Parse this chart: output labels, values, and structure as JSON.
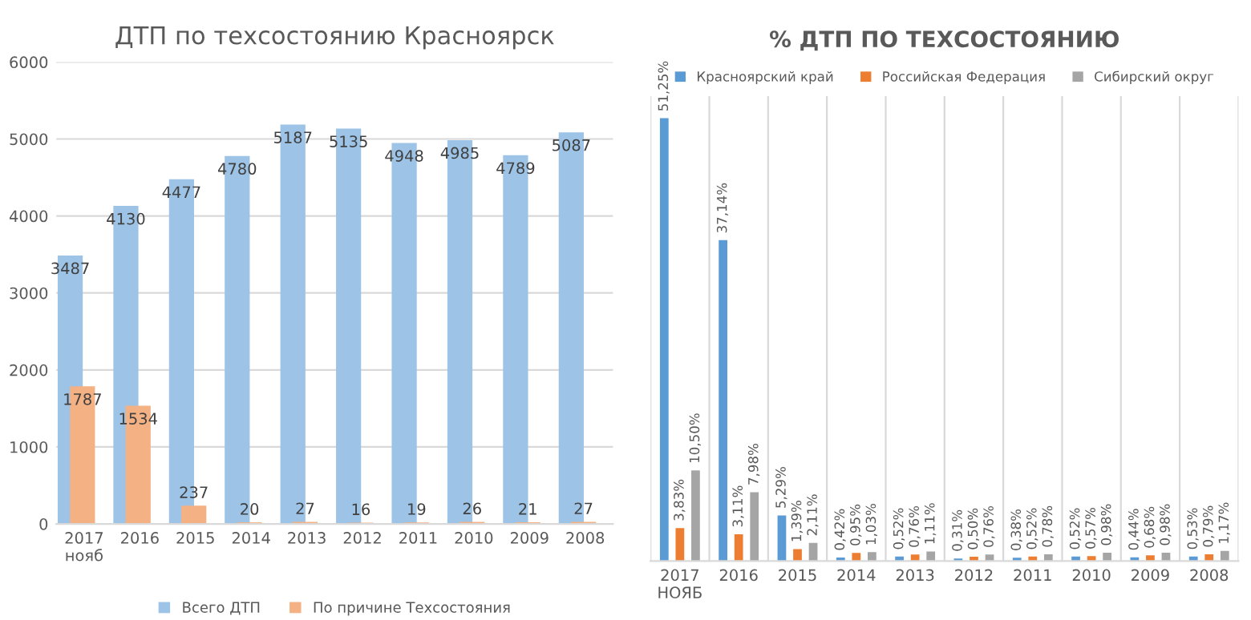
{
  "chart_data": [
    {
      "type": "bar",
      "title": "ДТП по техсостоянию Красноярск",
      "categories": [
        "2017\nнояб",
        "2016",
        "2015",
        "2014",
        "2013",
        "2012",
        "2011",
        "2010",
        "2009",
        "2008"
      ],
      "series": [
        {
          "name": "Всего ДТП",
          "color": "#9dc3e6",
          "values": [
            3487,
            4130,
            4477,
            4780,
            5187,
            5135,
            4948,
            4985,
            4789,
            5087
          ]
        },
        {
          "name": "По причине Техсостояния",
          "color": "#f4b183",
          "values": [
            1787,
            1534,
            237,
            20,
            27,
            16,
            19,
            26,
            21,
            27
          ]
        }
      ],
      "ylim": [
        0,
        6000
      ],
      "yticks": [
        0,
        1000,
        2000,
        3000,
        4000,
        5000,
        6000
      ],
      "grid": "y",
      "legend": "bottom",
      "data_labels": true
    },
    {
      "type": "bar",
      "title": "% ДТП ПО ТЕХСОСТОЯНИЮ",
      "categories": [
        "2017\nНОЯБ",
        "2016",
        "2015",
        "2014",
        "2013",
        "2012",
        "2011",
        "2010",
        "2009",
        "2008"
      ],
      "series": [
        {
          "name": "Красноярский край",
          "color": "#5b9bd5",
          "values": [
            51.25,
            37.14,
            5.29,
            0.42,
            0.52,
            0.31,
            0.38,
            0.52,
            0.44,
            0.53
          ],
          "value_labels": [
            "51,25%",
            "37,14%",
            "5,29%",
            "0,42%",
            "0,52%",
            "0,31%",
            "0,38%",
            "0,52%",
            "0,44%",
            "0,53%"
          ]
        },
        {
          "name": "Российская Федерация",
          "color": "#ed7d31",
          "values": [
            3.83,
            3.11,
            1.39,
            0.95,
            0.76,
            0.5,
            0.52,
            0.57,
            0.68,
            0.79
          ],
          "value_labels": [
            "3,83%",
            "3,11%",
            "1,39%",
            "0,95%",
            "0,76%",
            "0,50%",
            "0,52%",
            "0,57%",
            "0,68%",
            "0,79%"
          ]
        },
        {
          "name": "Сибирский округ",
          "color": "#a5a5a5",
          "values": [
            10.5,
            7.98,
            2.11,
            1.03,
            1.11,
            0.76,
            0.78,
            0.98,
            0.98,
            1.17
          ],
          "value_labels": [
            "10,50%",
            "7,98%",
            "2,11%",
            "1,03%",
            "1,11%",
            "0,76%",
            "0,78%",
            "0,98%",
            "0,98%",
            "1,17%"
          ]
        }
      ],
      "grid": "x",
      "legend": "top",
      "tick_labels": "x"
    }
  ]
}
